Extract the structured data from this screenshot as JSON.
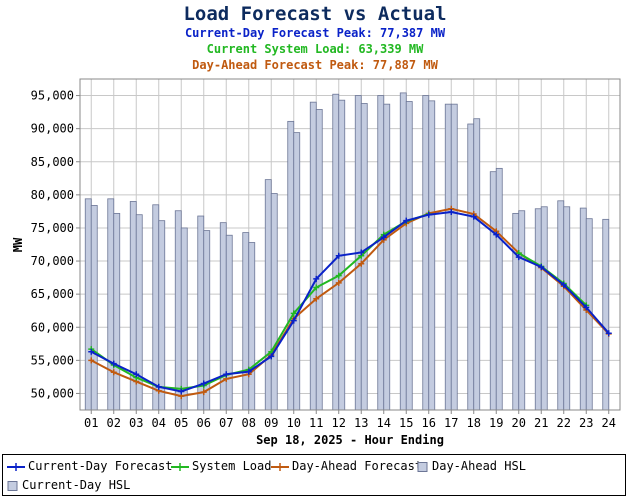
{
  "header": {
    "title": "Load Forecast vs Actual",
    "line1": "Current-Day Forecast Peak:  77,387 MW",
    "line2": "Current System Load:  63,339 MW",
    "line3": "Day-Ahead Forecast Peak:  77,887 MW"
  },
  "colors": {
    "title": "#0d2b5e",
    "current_day": "#0a22c8",
    "system_load": "#22b822",
    "day_ahead": "#c05a10",
    "hsl_fill": "#c4cce0",
    "hsl_stroke": "#6c7696"
  },
  "chart_data": {
    "type": "bar",
    "xlabel": "Sep 18, 2025 - Hour Ending",
    "ylabel": "MW",
    "categories": [
      "01",
      "02",
      "03",
      "04",
      "05",
      "06",
      "07",
      "08",
      "09",
      "10",
      "11",
      "12",
      "13",
      "14",
      "15",
      "16",
      "17",
      "18",
      "19",
      "20",
      "21",
      "22",
      "23",
      "24"
    ],
    "ylim": [
      47500,
      97500
    ],
    "yticks": [
      50000,
      55000,
      60000,
      65000,
      70000,
      75000,
      80000,
      85000,
      90000,
      95000
    ],
    "ytick_labels": [
      "50,000",
      "55,000",
      "60,000",
      "65,000",
      "70,000",
      "75,000",
      "80,000",
      "85,000",
      "90,000",
      "95,000"
    ],
    "grid": true,
    "legend_position": "bottom",
    "series": [
      {
        "name": "Current-Day Forecast",
        "kind": "line",
        "values": [
          56300,
          54500,
          52900,
          51000,
          50300,
          51500,
          52900,
          53300,
          55600,
          61000,
          67300,
          70800,
          71300,
          73600,
          76100,
          77000,
          77400,
          76700,
          74000,
          70600,
          69100,
          66400,
          63000,
          59100
        ]
      },
      {
        "name": "System Load",
        "kind": "line",
        "values": [
          56700,
          54300,
          52400,
          51000,
          50700,
          51200,
          52800,
          53600,
          56300,
          62100,
          66000,
          67800,
          70800,
          74000,
          76000,
          77100,
          null,
          null,
          null,
          71200,
          69200,
          66600,
          63300,
          null
        ]
      },
      {
        "name": "Day-Ahead Forecast",
        "kind": "line",
        "values": [
          55000,
          53200,
          51800,
          50400,
          49600,
          50200,
          52200,
          52900,
          55800,
          61300,
          64300,
          66700,
          69600,
          73200,
          75700,
          77200,
          77900,
          77100,
          74500,
          71200,
          69000,
          66200,
          62600,
          59000
        ]
      },
      {
        "name": "Day-Ahead HSL",
        "kind": "bar",
        "values": [
          79400,
          79400,
          79000,
          78500,
          77600,
          76800,
          75800,
          74300,
          82300,
          91100,
          94000,
          95200,
          95000,
          95000,
          95400,
          95000,
          93700,
          90700,
          83500,
          77200,
          77900,
          79100,
          78000,
          76300
        ]
      },
      {
        "name": "Current-Day HSL",
        "kind": "bar",
        "values": [
          78400,
          77200,
          77000,
          76100,
          75000,
          74600,
          73900,
          72800,
          80200,
          89400,
          92900,
          94300,
          93800,
          93700,
          94100,
          94200,
          93700,
          91500,
          84000,
          77600,
          78200,
          78200,
          76400,
          null
        ]
      }
    ]
  }
}
